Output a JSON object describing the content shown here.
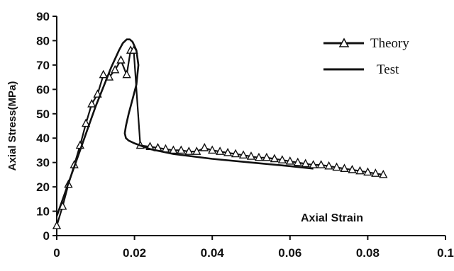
{
  "chart_data": {
    "type": "line",
    "title": "",
    "xlabel": "Axial Strain",
    "ylabel": "Axial Stress(MPa)",
    "xlim": [
      0,
      0.1
    ],
    "ylim": [
      0,
      90
    ],
    "x_ticks": [
      "0",
      "0.02",
      "0.04",
      "0.06",
      "0.08",
      "0.1"
    ],
    "y_ticks": [
      "0",
      "10",
      "20",
      "30",
      "40",
      "50",
      "60",
      "70",
      "80",
      "90"
    ],
    "grid": false,
    "legend_position": "top-right",
    "series": [
      {
        "name": "Theory",
        "marker": "triangle",
        "x": [
          0,
          0.0015,
          0.003,
          0.0045,
          0.006,
          0.0075,
          0.009,
          0.0105,
          0.012,
          0.0135,
          0.015,
          0.0165,
          0.018,
          0.019,
          0.0198,
          0.0215,
          0.024,
          0.026,
          0.028,
          0.03,
          0.032,
          0.034,
          0.036,
          0.038,
          0.04,
          0.042,
          0.044,
          0.046,
          0.048,
          0.05,
          0.052,
          0.054,
          0.056,
          0.058,
          0.06,
          0.062,
          0.064,
          0.066,
          0.068,
          0.07,
          0.072,
          0.074,
          0.076,
          0.078,
          0.08,
          0.082,
          0.084
        ],
        "y": [
          4,
          12,
          21,
          29,
          37,
          46,
          54,
          58,
          66,
          65,
          68,
          72,
          66,
          76,
          76,
          37,
          36.5,
          36,
          35.5,
          35,
          35,
          34.5,
          34.5,
          36,
          35,
          34.5,
          34,
          33.5,
          33,
          32.5,
          32,
          32,
          31.5,
          31,
          30.5,
          30,
          29.5,
          29,
          29,
          28.5,
          28,
          27.5,
          27,
          26.5,
          26,
          25.5,
          25
        ]
      },
      {
        "name": "Test",
        "marker": "none",
        "x": [
          0,
          0.002,
          0.004,
          0.006,
          0.008,
          0.01,
          0.012,
          0.014,
          0.016,
          0.017,
          0.018,
          0.0188,
          0.0195,
          0.0205,
          0.021,
          0.0205,
          0.0195,
          0.0185,
          0.0178,
          0.0175,
          0.0178,
          0.0185,
          0.0198,
          0.0215,
          0.024,
          0.03,
          0.04,
          0.05,
          0.06,
          0.066
        ],
        "y": [
          8,
          17,
          26,
          35,
          44,
          53,
          61,
          69,
          76,
          79,
          80.5,
          80.5,
          79.5,
          76,
          70,
          62,
          56,
          50,
          45,
          42,
          40,
          39,
          38,
          37,
          35.5,
          33.5,
          31.5,
          30,
          28.5,
          27.5
        ]
      }
    ]
  }
}
